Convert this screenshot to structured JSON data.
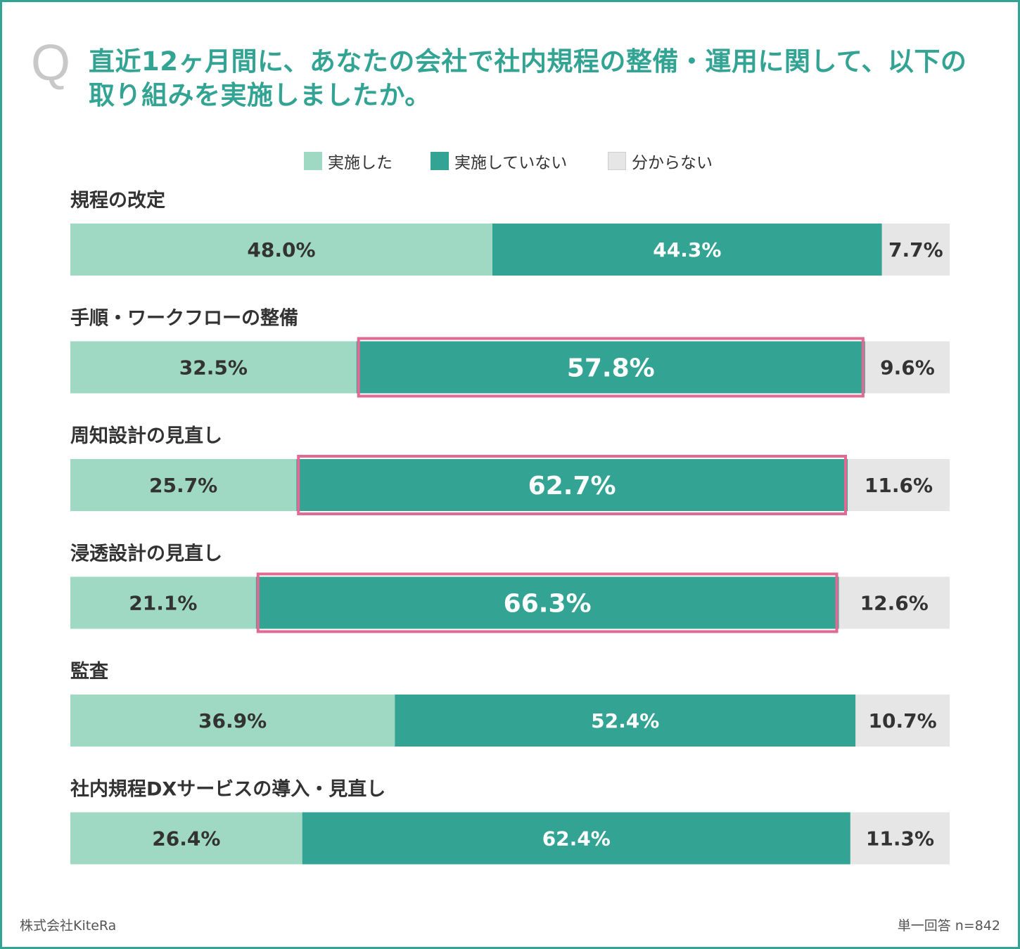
{
  "header": {
    "q_mark": "Q",
    "title_line1": "直近12ヶ月間に、あなたの会社で社内規程の整備・運用に関して、以下の",
    "title_line2": "取り組みを実施しましたか。"
  },
  "legend": [
    {
      "label": "実施した",
      "color": "#9fd9c3"
    },
    {
      "label": "実施していない",
      "color": "#33a393"
    },
    {
      "label": "分からない",
      "color": "#e6e6e6"
    }
  ],
  "colors": {
    "accent": "#33a393",
    "highlight_border": "#e06a94"
  },
  "chart_data": {
    "type": "bar",
    "orientation": "horizontal",
    "stacked": true,
    "percent": true,
    "categories": [
      "規程の改定",
      "手順・ワークフローの整備",
      "周知設計の見直し",
      "浸透設計の見直し",
      "監査",
      "社内規程DXサービスの導入・見直し"
    ],
    "series": [
      {
        "name": "実施した",
        "values": [
          48.0,
          32.5,
          25.7,
          21.1,
          36.9,
          26.4
        ],
        "labels": [
          "48.0%",
          "32.5%",
          "25.7%",
          "21.1%",
          "36.9%",
          "26.4%"
        ]
      },
      {
        "name": "実施していない",
        "values": [
          44.3,
          57.8,
          62.7,
          66.3,
          52.4,
          62.4
        ],
        "labels": [
          "44.3%",
          "57.8%",
          "62.7%",
          "66.3%",
          "52.4%",
          "62.4%"
        ]
      },
      {
        "name": "分からない",
        "values": [
          7.7,
          9.6,
          11.6,
          12.6,
          10.7,
          11.3
        ],
        "labels": [
          "7.7%",
          "9.6%",
          "11.6%",
          "12.6%",
          "10.7%",
          "11.3%"
        ]
      }
    ],
    "highlighted": [
      {
        "category_index": 1,
        "series_index": 1
      },
      {
        "category_index": 2,
        "series_index": 1
      },
      {
        "category_index": 3,
        "series_index": 1
      }
    ],
    "xlim": [
      0,
      100
    ],
    "legend_position": "top"
  },
  "footer": {
    "source": "株式会社KiteRa",
    "note": "単一回答 n=842"
  }
}
